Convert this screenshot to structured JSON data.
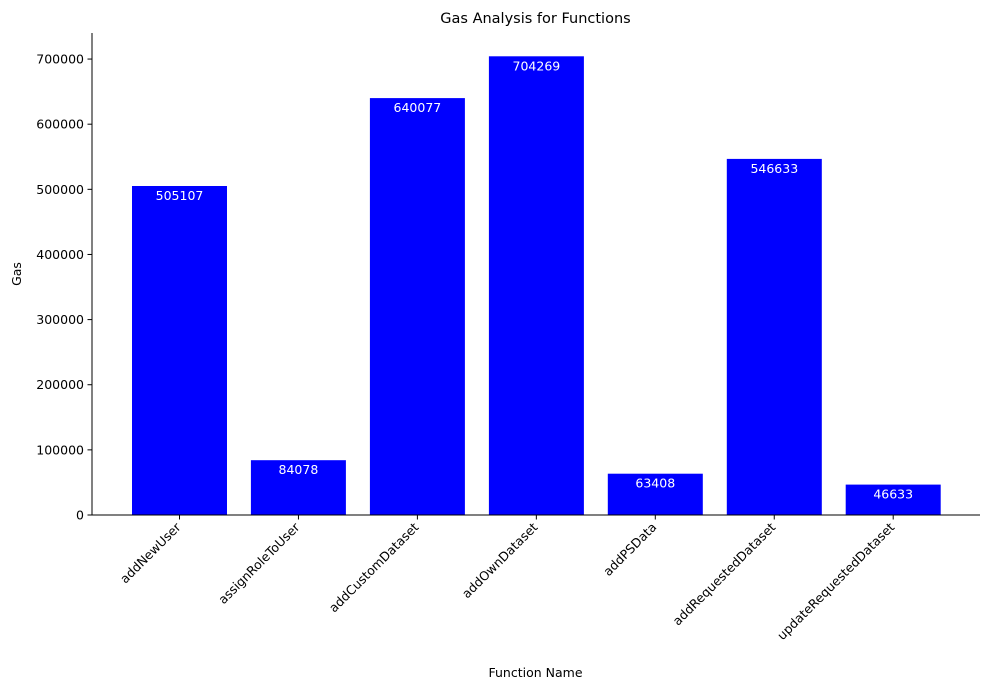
{
  "chart_data": {
    "type": "bar",
    "title": "Gas Analysis for Functions",
    "xlabel": "Function Name",
    "ylabel": "Gas",
    "categories": [
      "addNewUser",
      "assignRoleToUser",
      "addCustomDataset",
      "addOwnDataset",
      "addPSData",
      "addRequestedDataset",
      "updateRequestedDataset"
    ],
    "values": [
      505107,
      84078,
      640077,
      704269,
      63408,
      546633,
      46633
    ],
    "ylim": [
      0,
      740000
    ],
    "yticks": [
      0,
      100000,
      200000,
      300000,
      400000,
      500000,
      600000,
      700000
    ],
    "ytick_labels": [
      "0",
      "100000",
      "200000",
      "300000",
      "400000",
      "500000",
      "600000",
      "700000"
    ],
    "bar_color": "#0000ff",
    "data_label_color": "#ffffff",
    "grid": false,
    "legend": "none",
    "spines": "left-bottom"
  }
}
